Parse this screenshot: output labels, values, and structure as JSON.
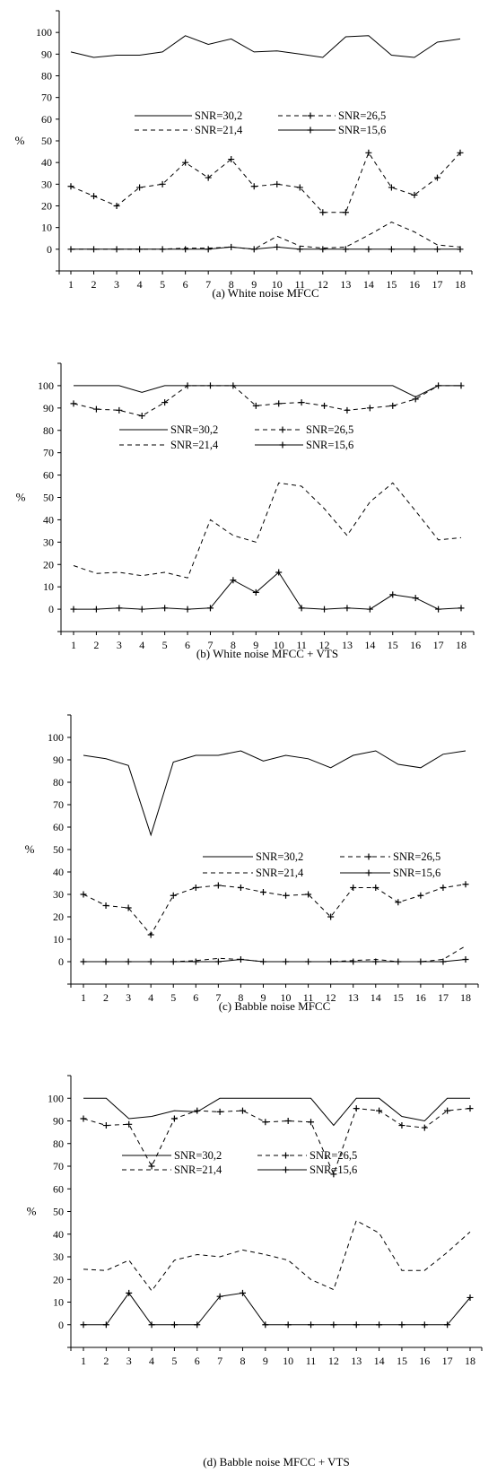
{
  "chart_data": [
    {
      "type": "line",
      "title": "(a) White noise MFCC",
      "ylabel": "%",
      "ylim": [
        -10,
        110
      ],
      "yticks": [
        0,
        10,
        20,
        30,
        40,
        50,
        60,
        70,
        80,
        90,
        100
      ],
      "categories": [
        "1",
        "2",
        "3",
        "4",
        "5",
        "6",
        "7",
        "8",
        "9",
        "10",
        "11",
        "12",
        "13",
        "14",
        "15",
        "16",
        "17",
        "18"
      ],
      "legend_placement": "middle",
      "series": [
        {
          "name": "SNR=30,2",
          "style": "solid",
          "marker": "none",
          "values": [
            91,
            88.5,
            89.5,
            89.5,
            91,
            98.5,
            94.5,
            97,
            91,
            91.5,
            90,
            88.5,
            98,
            98.5,
            89.5,
            88.5,
            95.5,
            97
          ]
        },
        {
          "name": "SNR=26,5",
          "style": "dashed",
          "marker": "plus",
          "values": [
            29,
            24.5,
            20,
            28.5,
            30,
            40,
            33,
            41.5,
            29,
            30,
            28.5,
            17,
            17,
            44.5,
            28.5,
            25,
            33,
            44.5
          ]
        },
        {
          "name": "SNR=21,4",
          "style": "dashed",
          "marker": "none",
          "values": [
            0,
            0,
            0,
            0,
            0,
            0.5,
            0.5,
            1,
            0,
            6,
            1.5,
            0.5,
            1,
            6.5,
            12.5,
            8,
            2,
            1
          ]
        },
        {
          "name": "SNR=15,6",
          "style": "solid",
          "marker": "plus",
          "values": [
            0,
            0,
            0,
            0,
            0,
            0,
            0,
            1,
            0,
            1,
            0,
            0,
            0,
            0,
            0,
            0,
            0,
            0
          ]
        }
      ]
    },
    {
      "type": "line",
      "title": "(b) White noise MFCC + VTS",
      "ylabel": "%",
      "ylim": [
        -10,
        110
      ],
      "yticks": [
        0,
        10,
        20,
        30,
        40,
        50,
        60,
        70,
        80,
        90,
        100
      ],
      "categories": [
        "1",
        "2",
        "3",
        "4",
        "5",
        "6",
        "7",
        "8",
        "9",
        "10",
        "11",
        "12",
        "13",
        "14",
        "15",
        "16",
        "17",
        "18"
      ],
      "legend_placement": "upper-middle",
      "series": [
        {
          "name": "SNR=30,2",
          "style": "solid",
          "marker": "none",
          "values": [
            100,
            100,
            100,
            97,
            100,
            100,
            100,
            100,
            100,
            100,
            100,
            100,
            100,
            100,
            100,
            95,
            100,
            100
          ]
        },
        {
          "name": "SNR=26,5",
          "style": "dashed",
          "marker": "plus",
          "values": [
            92,
            89.5,
            89,
            86.5,
            92.5,
            100,
            100,
            100,
            91,
            92,
            92.5,
            91,
            89,
            90,
            91,
            94,
            100,
            100
          ]
        },
        {
          "name": "SNR=21,4",
          "style": "dashed",
          "marker": "none",
          "values": [
            19.5,
            16,
            16.5,
            15,
            16.5,
            14,
            40,
            33,
            30,
            56.5,
            55,
            45,
            33,
            48,
            56.5,
            44,
            31,
            32
          ]
        },
        {
          "name": "SNR=15,6",
          "style": "solid",
          "marker": "plus",
          "values": [
            0,
            0,
            0.5,
            0,
            0.5,
            0,
            0.5,
            13,
            7.5,
            16.5,
            0.5,
            0,
            0.5,
            0,
            6.5,
            5,
            0,
            0.5
          ]
        }
      ]
    },
    {
      "type": "line",
      "title": "(c) Babble noise MFCC",
      "ylabel": "%",
      "ylim": [
        -10,
        110
      ],
      "yticks": [
        0,
        10,
        20,
        30,
        40,
        50,
        60,
        70,
        80,
        90,
        100
      ],
      "categories": [
        "1",
        "2",
        "3",
        "4",
        "5",
        "6",
        "7",
        "8",
        "9",
        "10",
        "11",
        "12",
        "13",
        "14",
        "15",
        "16",
        "17",
        "18"
      ],
      "legend_placement": "middle",
      "series": [
        {
          "name": "SNR=30,2",
          "style": "solid",
          "marker": "none",
          "values": [
            92,
            90.5,
            87.5,
            56.5,
            89,
            92,
            92,
            94,
            89.5,
            92,
            90.5,
            86.5,
            92,
            94,
            88,
            86.5,
            92.5,
            94
          ]
        },
        {
          "name": "SNR=26,5",
          "style": "dashed",
          "marker": "plus",
          "values": [
            30,
            25,
            24,
            12,
            29.5,
            33,
            34,
            33,
            31,
            29.5,
            30,
            20,
            33,
            33,
            26.5,
            29.5,
            33,
            34.5
          ]
        },
        {
          "name": "SNR=21,4",
          "style": "dashed",
          "marker": "none",
          "values": [
            0,
            0,
            0,
            0,
            0,
            0.5,
            1.5,
            1,
            0,
            0,
            0,
            0,
            0.5,
            1,
            0,
            0,
            1,
            7
          ]
        },
        {
          "name": "SNR=15,6",
          "style": "solid",
          "marker": "plus",
          "values": [
            0,
            0,
            0,
            0,
            0,
            0,
            0,
            1,
            0,
            0,
            0,
            0,
            0,
            0,
            0,
            0,
            0,
            1
          ]
        }
      ]
    },
    {
      "type": "line",
      "title": "(d) Babble noise MFCC + VTS",
      "ylabel": "%",
      "ylim": [
        -10,
        110
      ],
      "yticks": [
        0,
        10,
        20,
        30,
        40,
        50,
        60,
        70,
        80,
        90,
        100
      ],
      "categories": [
        "1",
        "2",
        "3",
        "4",
        "5",
        "6",
        "7",
        "8",
        "9",
        "10",
        "11",
        "12",
        "13",
        "14",
        "15",
        "16",
        "17",
        "18"
      ],
      "legend_placement": "middle",
      "series": [
        {
          "name": "SNR=30,2",
          "style": "solid",
          "marker": "none",
          "values": [
            100,
            100,
            91,
            92,
            94.5,
            94,
            100,
            100,
            100,
            100,
            100,
            88,
            100,
            100,
            92,
            90,
            100,
            100
          ]
        },
        {
          "name": "SNR=26,5",
          "style": "dashed",
          "marker": "plus",
          "values": [
            91,
            88,
            88.5,
            70,
            91,
            94.5,
            94,
            94.5,
            89.5,
            90,
            89.5,
            66.5,
            95.5,
            94.5,
            88,
            87,
            94.5,
            95.5
          ]
        },
        {
          "name": "SNR=21,4",
          "style": "dashed",
          "marker": "none",
          "values": [
            24.5,
            24,
            28.5,
            15,
            28.5,
            31,
            30,
            33,
            31,
            28.5,
            20,
            15.5,
            46,
            40.5,
            24,
            24,
            32,
            41
          ]
        },
        {
          "name": "SNR=15,6",
          "style": "solid",
          "marker": "plus",
          "values": [
            0,
            0,
            14,
            0,
            0,
            0,
            12.5,
            14,
            0,
            0,
            0,
            0,
            0,
            0,
            0,
            0,
            0,
            12
          ]
        }
      ]
    }
  ]
}
